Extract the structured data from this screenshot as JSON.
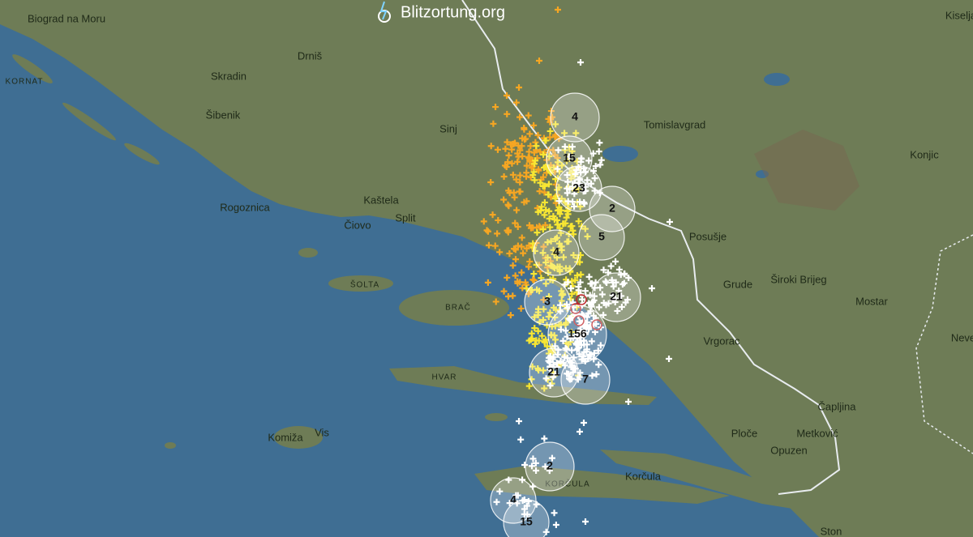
{
  "brand": {
    "name": "Blitzortung.org"
  },
  "places": [
    {
      "label": "Biograd na Moru"
    },
    {
      "label": "Kiselja"
    },
    {
      "label": "Drniš"
    },
    {
      "label": "Skradin"
    },
    {
      "label": "KORNAT"
    },
    {
      "label": "Šibenik"
    },
    {
      "label": "Sinj"
    },
    {
      "label": "Tomislavgrad"
    },
    {
      "label": "Konjic"
    },
    {
      "label": "Kaštela"
    },
    {
      "label": "Split"
    },
    {
      "label": "Rogoznica"
    },
    {
      "label": "Čiovo"
    },
    {
      "label": "Posušje"
    },
    {
      "label": "Grude"
    },
    {
      "label": "Široki Brijeg"
    },
    {
      "label": "Mostar"
    },
    {
      "label": "ŠOLTA"
    },
    {
      "label": "BRAČ"
    },
    {
      "label": "Neve"
    },
    {
      "label": "Vrgorac"
    },
    {
      "label": "HVAR"
    },
    {
      "label": "Čapljina"
    },
    {
      "label": "Ploče"
    },
    {
      "label": "Metković"
    },
    {
      "label": "Opuzen"
    },
    {
      "label": "Komiža"
    },
    {
      "label": "Vis"
    },
    {
      "label": "KORČULA"
    },
    {
      "label": "Korčula"
    },
    {
      "label": "Ston"
    }
  ],
  "clusters": [
    {
      "count": 4
    },
    {
      "count": 15
    },
    {
      "count": 23
    },
    {
      "count": 2
    },
    {
      "count": 5
    },
    {
      "count": 4
    },
    {
      "count": 21
    },
    {
      "count": 3
    },
    {
      "count": 156
    },
    {
      "count": 21
    },
    {
      "count": 7
    },
    {
      "count": 2
    },
    {
      "count": 4
    },
    {
      "count": 15
    }
  ]
}
